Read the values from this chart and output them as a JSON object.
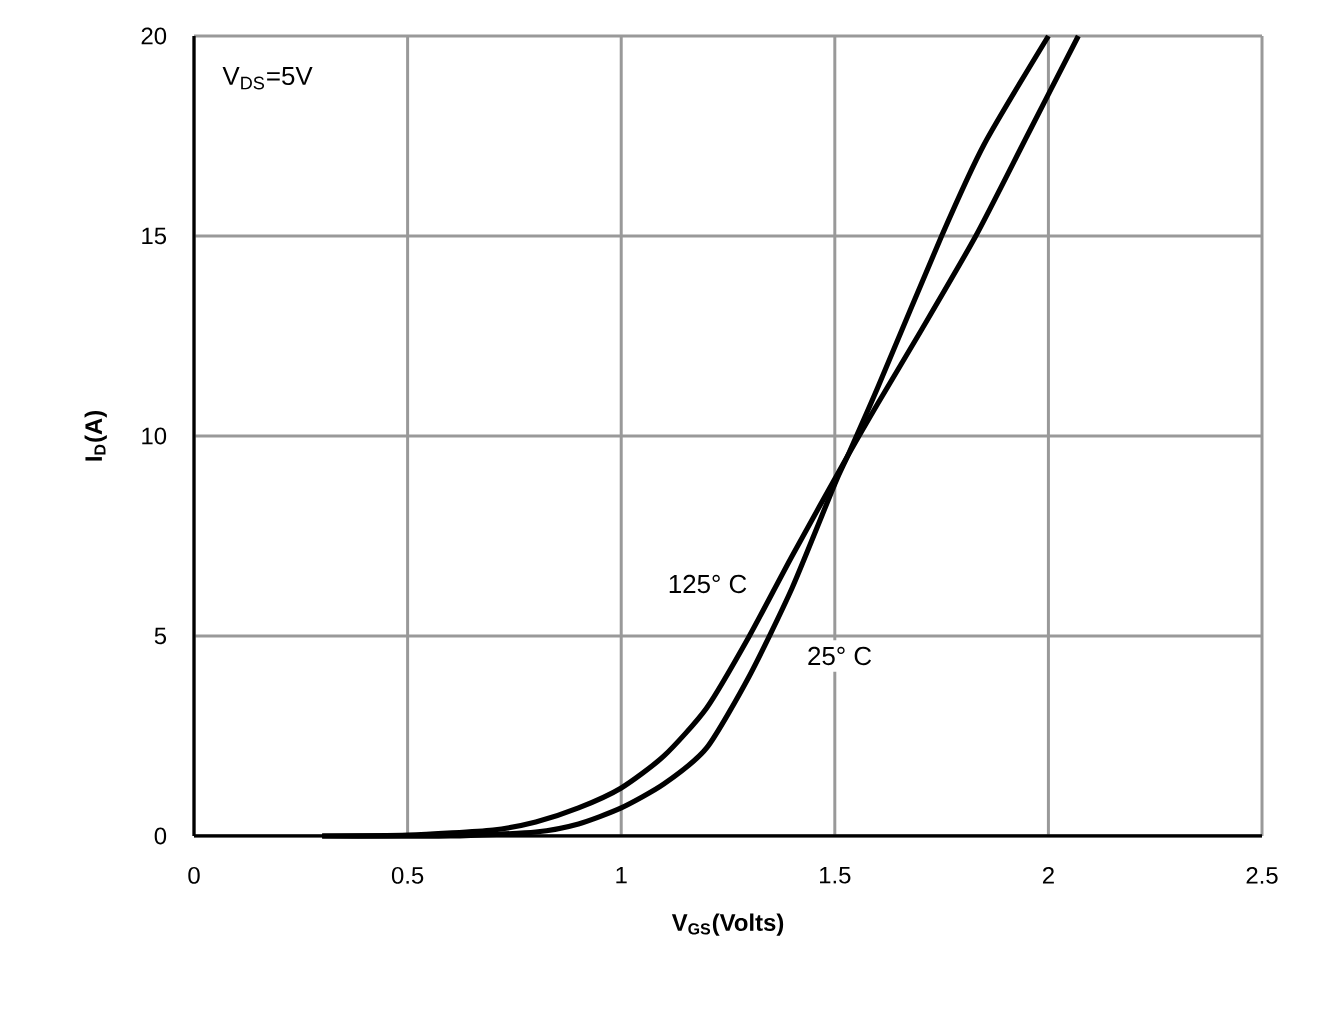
{
  "chart_data": {
    "type": "line",
    "xlabel": "V$_{GS}$(Volts)",
    "ylabel": "I$_{D}$(A)",
    "xlim": [
      0,
      2.5
    ],
    "ylim": [
      0,
      20
    ],
    "xticks": [
      0,
      0.5,
      1,
      1.5,
      2,
      2.5
    ],
    "yticks": [
      0,
      5,
      10,
      15,
      20
    ],
    "grid": true,
    "marker": "none",
    "line_style": "solid",
    "legend": false,
    "annotations": [
      "V$_{DS}$=5V"
    ],
    "series": [
      {
        "name": "125° C",
        "color": "#000000",
        "x": [
          0.3,
          0.5,
          0.7,
          0.8,
          0.9,
          1.0,
          1.1,
          1.2,
          1.3,
          1.4,
          1.53,
          1.6,
          1.7,
          1.83,
          1.95,
          2.07
        ],
        "values": [
          0,
          0.02,
          0.15,
          0.35,
          0.7,
          1.2,
          2,
          3.2,
          5,
          7,
          9.5,
          10.8,
          12.6,
          15,
          17.5,
          20
        ]
      },
      {
        "name": "25° C",
        "color": "#000000",
        "x": [
          0.3,
          0.6,
          0.8,
          0.9,
          1.0,
          1.1,
          1.2,
          1.3,
          1.4,
          1.5,
          1.53,
          1.6,
          1.75,
          1.85,
          2.0
        ],
        "values": [
          0,
          0,
          0.1,
          0.3,
          0.7,
          1.3,
          2.2,
          4,
          6.2,
          8.8,
          9.5,
          11.2,
          15,
          17.3,
          20
        ]
      }
    ]
  }
}
